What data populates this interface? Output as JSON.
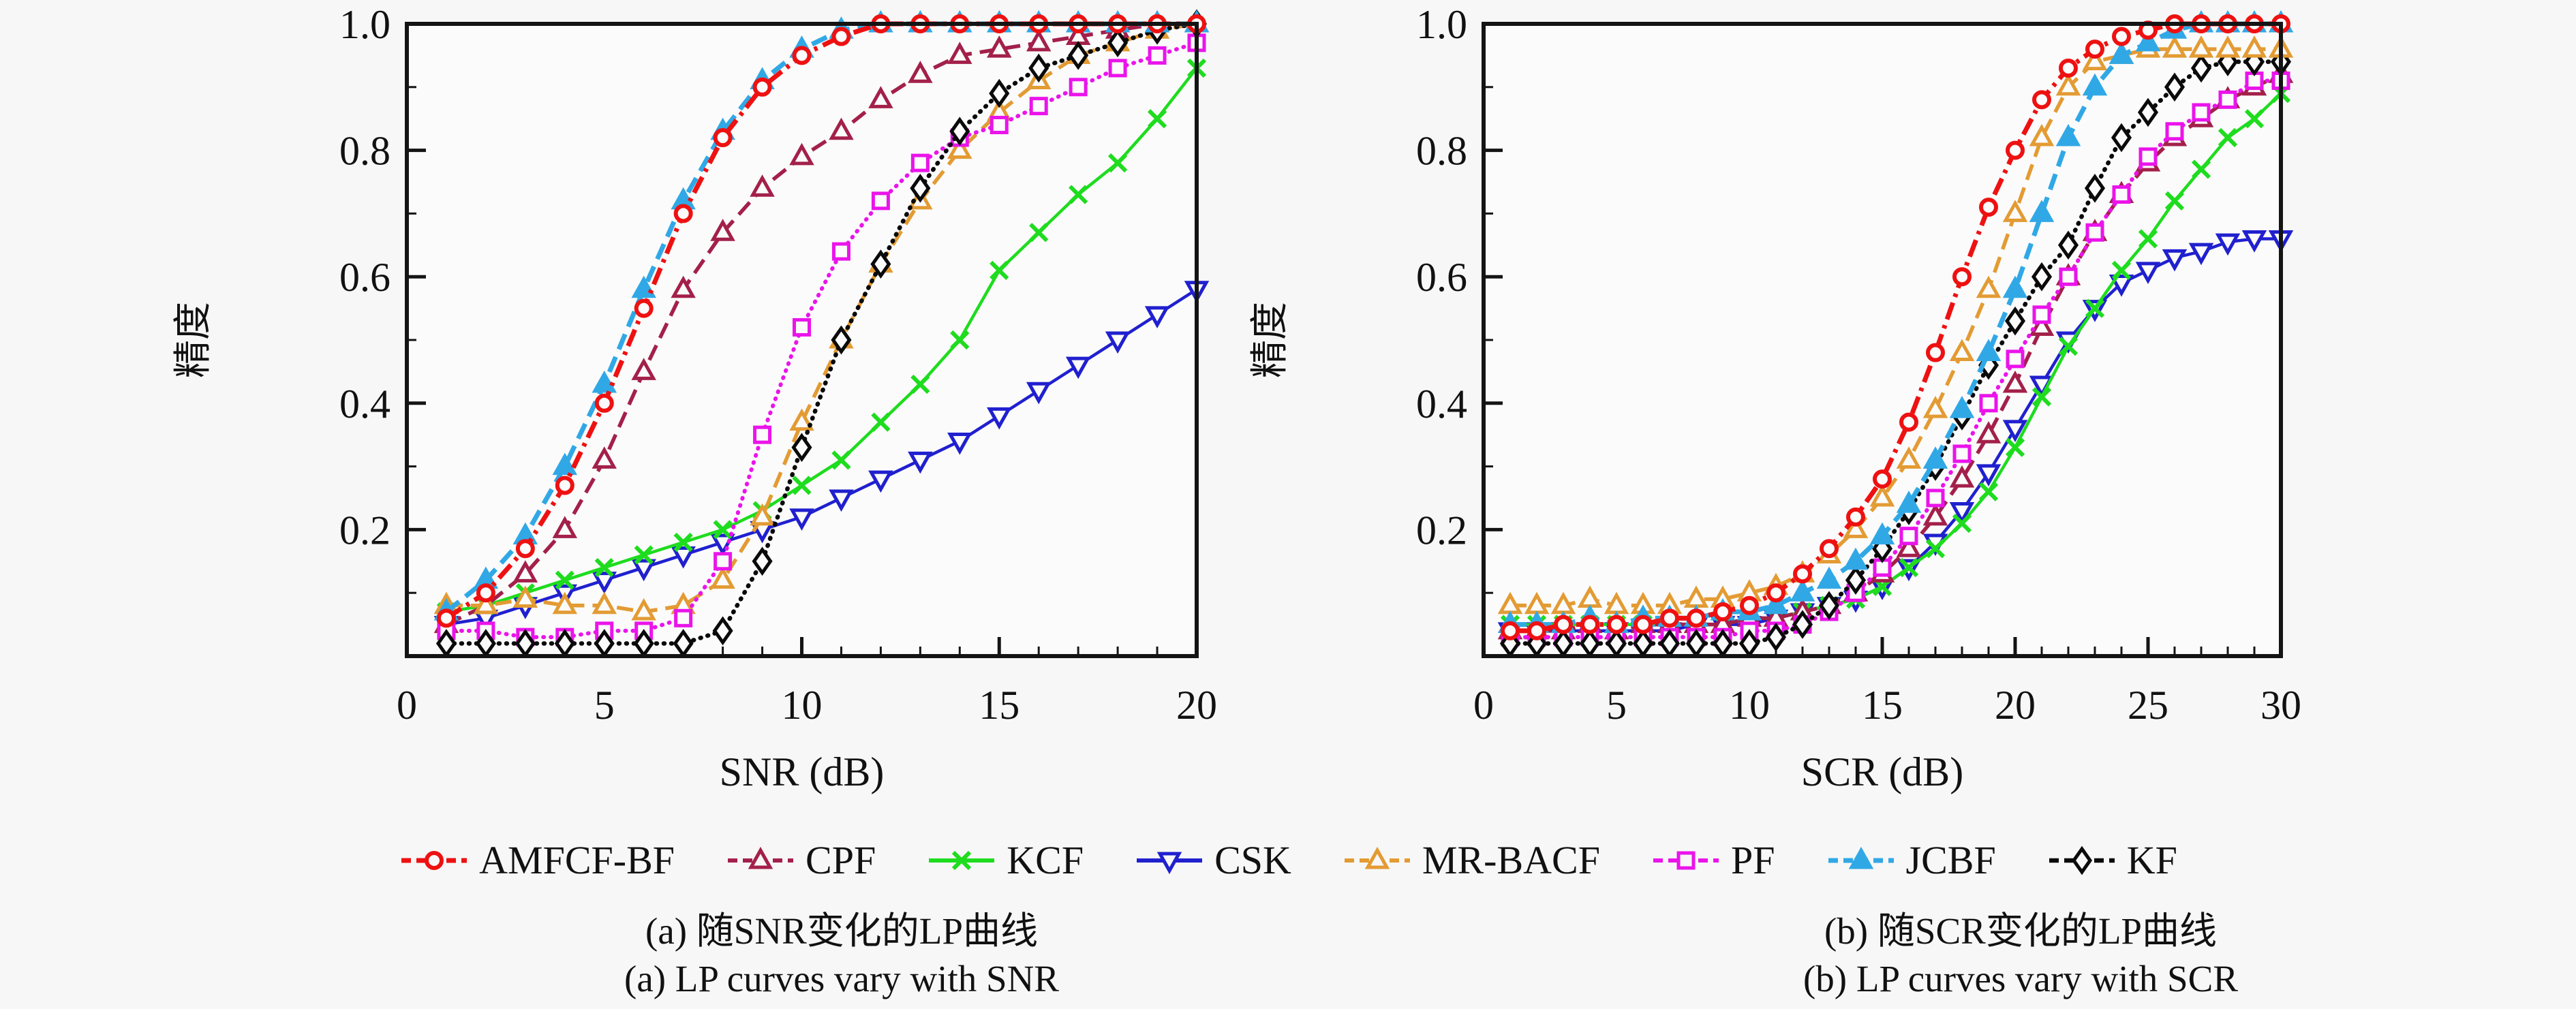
{
  "figure": {
    "background": "#f7f7f7",
    "plot_background": "#fbfbfb",
    "axis_color": "#141414",
    "text_color": "#111111"
  },
  "styles": {
    "AMFCF-BF": {
      "color": "#ee1111",
      "dash": "dashdot",
      "marker": "circle",
      "width": 7
    },
    "CPF": {
      "color": "#a3204a",
      "dash": "dashed",
      "marker": "triangle-open",
      "width": 5.5
    },
    "KCF": {
      "color": "#1edc1e",
      "dash": "solid",
      "marker": "x",
      "width": 4.5
    },
    "CSK": {
      "color": "#2020cf",
      "dash": "solid",
      "marker": "triangle-down",
      "width": 4.5
    },
    "MR-BACF": {
      "color": "#e39b33",
      "dash": "dashed",
      "marker": "triangle-open",
      "width": 5.5
    },
    "PF": {
      "color": "#ea14ea",
      "dash": "dotted",
      "marker": "square",
      "width": 6
    },
    "JCBF": {
      "color": "#31a8e6",
      "dash": "dashed",
      "marker": "triangle-fill",
      "width": 7
    },
    "KF": {
      "color": "#0a0a0a",
      "dash": "dotted",
      "marker": "diamond",
      "width": 6.5
    }
  },
  "legend": {
    "order": [
      "AMFCF-BF",
      "CPF",
      "KCF",
      "CSK",
      "MR-BACF",
      "PF",
      "JCBF",
      "KF"
    ]
  },
  "captions": {
    "a_cn": "(a) 随SNR变化的LP曲线",
    "a_en": "(a) LP curves vary with SNR",
    "b_cn": "(b) 随SCR变化的LP曲线",
    "b_en": "(b) LP curves vary with SCR"
  },
  "chart_data": [
    {
      "type": "line",
      "title": "LP curves vary with SNR",
      "xlabel": "SNR (dB)",
      "ylabel": "精度",
      "xlim": [
        0,
        20
      ],
      "ylim": [
        0,
        1
      ],
      "xticks": [
        0,
        5,
        10,
        15,
        20
      ],
      "xtick_labels": [
        "0",
        "5",
        "10",
        "15",
        "20"
      ],
      "x_minor_step": 1,
      "yticks": [
        0.2,
        0.4,
        0.6,
        0.8,
        1.0
      ],
      "ytick_labels": [
        "0.2",
        "0.4",
        "0.6",
        "0.8",
        "1.0"
      ],
      "y_minor_step": 0.1,
      "grid": false,
      "x": [
        1,
        2,
        3,
        4,
        5,
        6,
        7,
        8,
        9,
        10,
        11,
        12,
        13,
        14,
        15,
        16,
        17,
        18,
        19,
        20
      ],
      "series": [
        {
          "name": "CSK",
          "values": [
            0.05,
            0.06,
            0.08,
            0.1,
            0.12,
            0.14,
            0.16,
            0.18,
            0.2,
            0.22,
            0.25,
            0.28,
            0.31,
            0.34,
            0.38,
            0.42,
            0.46,
            0.5,
            0.54,
            0.58
          ]
        },
        {
          "name": "KCF",
          "values": [
            0.07,
            0.08,
            0.1,
            0.12,
            0.14,
            0.16,
            0.18,
            0.2,
            0.23,
            0.27,
            0.31,
            0.37,
            0.43,
            0.5,
            0.61,
            0.67,
            0.73,
            0.78,
            0.85,
            0.93
          ]
        },
        {
          "name": "CPF",
          "values": [
            0.05,
            0.08,
            0.13,
            0.2,
            0.31,
            0.45,
            0.58,
            0.67,
            0.74,
            0.79,
            0.83,
            0.88,
            0.92,
            0.95,
            0.96,
            0.97,
            0.98,
            0.99,
            1.0,
            1.0
          ]
        },
        {
          "name": "MR-BACF",
          "values": [
            0.08,
            0.08,
            0.09,
            0.08,
            0.08,
            0.07,
            0.08,
            0.12,
            0.22,
            0.37,
            0.5,
            0.62,
            0.72,
            0.8,
            0.86,
            0.91,
            0.95,
            0.97,
            0.99,
            1.0
          ]
        },
        {
          "name": "PF",
          "values": [
            0.04,
            0.04,
            0.03,
            0.03,
            0.04,
            0.04,
            0.06,
            0.15,
            0.35,
            0.52,
            0.64,
            0.72,
            0.78,
            0.82,
            0.84,
            0.87,
            0.9,
            0.93,
            0.95,
            0.97
          ]
        },
        {
          "name": "KF",
          "values": [
            0.02,
            0.02,
            0.02,
            0.02,
            0.02,
            0.02,
            0.02,
            0.04,
            0.15,
            0.33,
            0.5,
            0.62,
            0.74,
            0.83,
            0.89,
            0.93,
            0.95,
            0.97,
            0.99,
            1.0
          ]
        },
        {
          "name": "JCBF",
          "values": [
            0.07,
            0.12,
            0.19,
            0.3,
            0.43,
            0.58,
            0.72,
            0.83,
            0.91,
            0.96,
            0.99,
            1.0,
            1.0,
            1.0,
            1.0,
            1.0,
            1.0,
            1.0,
            1.0,
            1.0
          ]
        },
        {
          "name": "AMFCF-BF",
          "values": [
            0.06,
            0.1,
            0.17,
            0.27,
            0.4,
            0.55,
            0.7,
            0.82,
            0.9,
            0.95,
            0.98,
            1.0,
            1.0,
            1.0,
            1.0,
            1.0,
            1.0,
            1.0,
            1.0,
            1.0
          ]
        }
      ]
    },
    {
      "type": "line",
      "title": "LP curves vary with SCR",
      "xlabel": "SCR (dB)",
      "ylabel": "精度",
      "xlim": [
        0,
        30
      ],
      "ylim": [
        0,
        1
      ],
      "xticks": [
        0,
        5,
        10,
        15,
        20,
        25,
        30
      ],
      "xtick_labels": [
        "0",
        "5",
        "10",
        "15",
        "20",
        "25",
        "30"
      ],
      "x_minor_step": 1,
      "yticks": [
        0.2,
        0.4,
        0.6,
        0.8,
        1.0
      ],
      "ytick_labels": [
        "0.2",
        "0.4",
        "0.6",
        "0.8",
        "1.0"
      ],
      "y_minor_step": 0.1,
      "grid": false,
      "x": [
        1,
        2,
        3,
        4,
        5,
        6,
        7,
        8,
        9,
        10,
        11,
        12,
        13,
        14,
        15,
        16,
        17,
        18,
        19,
        20,
        21,
        22,
        23,
        24,
        25,
        26,
        27,
        28,
        29,
        30
      ],
      "series": [
        {
          "name": "CSK",
          "values": [
            0.04,
            0.04,
            0.04,
            0.04,
            0.04,
            0.04,
            0.04,
            0.05,
            0.05,
            0.05,
            0.06,
            0.07,
            0.08,
            0.09,
            0.11,
            0.14,
            0.18,
            0.23,
            0.29,
            0.36,
            0.43,
            0.5,
            0.55,
            0.59,
            0.61,
            0.63,
            0.64,
            0.655,
            0.66,
            0.66
          ]
        },
        {
          "name": "KCF",
          "values": [
            0.05,
            0.05,
            0.05,
            0.05,
            0.05,
            0.05,
            0.05,
            0.05,
            0.05,
            0.06,
            0.06,
            0.07,
            0.08,
            0.09,
            0.11,
            0.14,
            0.17,
            0.21,
            0.26,
            0.33,
            0.41,
            0.49,
            0.55,
            0.61,
            0.66,
            0.72,
            0.77,
            0.82,
            0.85,
            0.89
          ]
        },
        {
          "name": "CPF",
          "values": [
            0.04,
            0.04,
            0.04,
            0.05,
            0.04,
            0.05,
            0.05,
            0.05,
            0.05,
            0.06,
            0.06,
            0.07,
            0.08,
            0.1,
            0.13,
            0.17,
            0.22,
            0.28,
            0.35,
            0.43,
            0.52,
            0.6,
            0.67,
            0.73,
            0.78,
            0.82,
            0.85,
            0.88,
            0.9,
            0.92
          ]
        },
        {
          "name": "PF",
          "values": [
            0.03,
            0.03,
            0.03,
            0.03,
            0.03,
            0.03,
            0.03,
            0.03,
            0.03,
            0.04,
            0.04,
            0.05,
            0.07,
            0.1,
            0.14,
            0.19,
            0.25,
            0.32,
            0.4,
            0.47,
            0.54,
            0.6,
            0.67,
            0.73,
            0.79,
            0.83,
            0.86,
            0.88,
            0.91,
            0.91
          ]
        },
        {
          "name": "KF",
          "values": [
            0.02,
            0.02,
            0.02,
            0.02,
            0.02,
            0.02,
            0.02,
            0.02,
            0.02,
            0.02,
            0.03,
            0.05,
            0.08,
            0.12,
            0.17,
            0.23,
            0.3,
            0.38,
            0.46,
            0.53,
            0.6,
            0.65,
            0.74,
            0.82,
            0.86,
            0.9,
            0.93,
            0.94,
            0.94,
            0.94
          ]
        },
        {
          "name": "MR-BACF",
          "values": [
            0.08,
            0.08,
            0.08,
            0.09,
            0.08,
            0.08,
            0.08,
            0.09,
            0.09,
            0.1,
            0.11,
            0.13,
            0.16,
            0.2,
            0.25,
            0.31,
            0.39,
            0.48,
            0.58,
            0.7,
            0.82,
            0.9,
            0.94,
            0.95,
            0.96,
            0.96,
            0.96,
            0.96,
            0.96,
            0.96
          ]
        },
        {
          "name": "JCBF",
          "values": [
            0.05,
            0.05,
            0.05,
            0.06,
            0.05,
            0.06,
            0.06,
            0.06,
            0.07,
            0.07,
            0.08,
            0.1,
            0.12,
            0.15,
            0.19,
            0.24,
            0.31,
            0.39,
            0.48,
            0.58,
            0.7,
            0.82,
            0.9,
            0.95,
            0.97,
            0.99,
            1.0,
            1.0,
            1.0,
            1.0
          ]
        },
        {
          "name": "AMFCF-BF",
          "values": [
            0.04,
            0.04,
            0.05,
            0.05,
            0.05,
            0.05,
            0.06,
            0.06,
            0.07,
            0.08,
            0.1,
            0.13,
            0.17,
            0.22,
            0.28,
            0.37,
            0.48,
            0.6,
            0.71,
            0.8,
            0.88,
            0.93,
            0.96,
            0.98,
            0.99,
            1.0,
            1.0,
            1.0,
            1.0,
            1.0
          ]
        }
      ]
    }
  ]
}
